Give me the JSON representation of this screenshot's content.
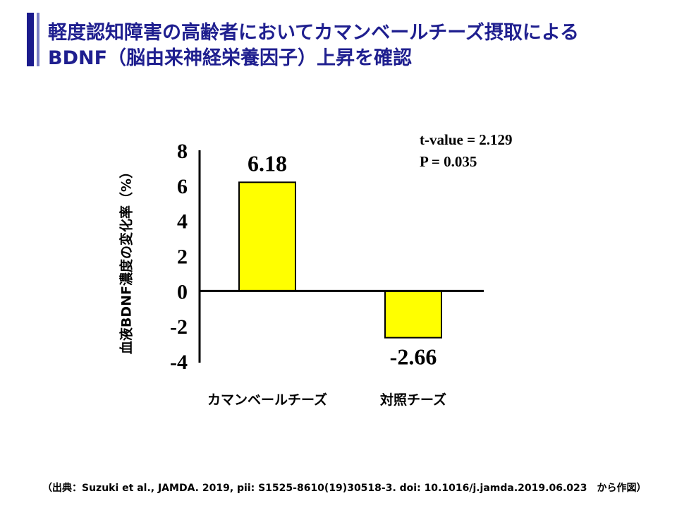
{
  "title": {
    "line1": "軽度認知障害の高齢者においてカマンベールチーズ摂取による",
    "line2": "BDNF（脳由来神経栄養因子）上昇を確認"
  },
  "stats": {
    "t_value": "t-value = 2.129",
    "p_value": "P = 0.035"
  },
  "source": "（出典：Suzuki et al., JAMDA. 2019, pii: S1525-8610(19)30518-3. doi: 10.1016/j.jamda.2019.06.023　から作図）",
  "colors": {
    "bar_fill": "#ffff00",
    "bar_stroke": "#000000",
    "title": "#1f1f8f"
  },
  "chart_data": {
    "type": "bar",
    "title": "",
    "xlabel": "",
    "ylabel": "血液BDNF濃度の変化率（%）",
    "categories": [
      "カマンベールチーズ",
      "対照チーズ"
    ],
    "values": [
      6.18,
      -2.66
    ],
    "value_labels": [
      "6.18",
      "-2.66"
    ],
    "ylim": [
      -4,
      8
    ],
    "yticks": [
      8,
      6,
      4,
      2,
      0,
      -2,
      -4
    ],
    "ytick_labels": [
      "8",
      "6",
      "4",
      "2",
      "0",
      "-2",
      "-4"
    ],
    "grid": false
  }
}
